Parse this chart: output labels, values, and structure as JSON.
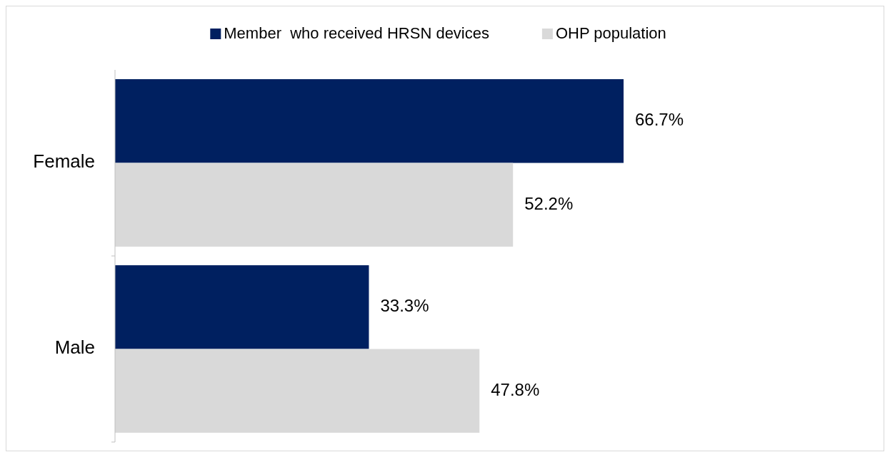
{
  "chart_data": {
    "type": "bar",
    "orientation": "horizontal",
    "categories": [
      "Female",
      "Male"
    ],
    "series": [
      {
        "name": "Member  who received HRSN devices",
        "color": "#002060",
        "values": [
          66.7,
          33.3
        ],
        "value_labels": [
          "66.7%",
          "33.3%"
        ]
      },
      {
        "name": "OHP population",
        "color": "#d9d9d9",
        "values": [
          52.2,
          47.8
        ],
        "value_labels": [
          "52.2%",
          "47.8%"
        ]
      }
    ],
    "legend": "top"
  }
}
